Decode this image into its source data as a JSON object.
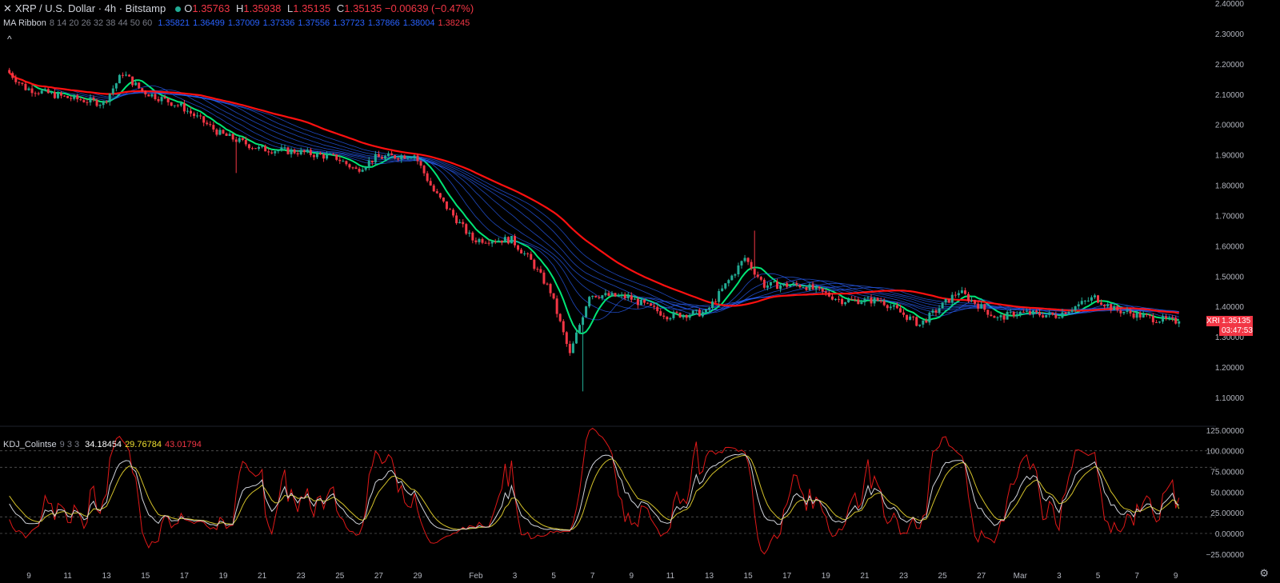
{
  "header": {
    "close_icon": "✕",
    "symbol_title": "XRP / U.S. Dollar · 4h · Bitstamp",
    "open_label": "O",
    "open_value": "1.35763",
    "high_label": "H",
    "high_value": "1.35938",
    "low_label": "L",
    "low_value": "1.35135",
    "close_label": "C",
    "close_value": "1.35135 −0.00639 (−0.47%)"
  },
  "ma_ribbon": {
    "name": "MA Ribbon",
    "params": "8 14 20 26 32 38 44 50 60",
    "values": [
      "1.35821",
      "1.36499",
      "1.37009",
      "1.37336",
      "1.37556",
      "1.37723",
      "1.37866",
      "1.38004",
      "1.38245"
    ],
    "collapse_icon": "^"
  },
  "kdj": {
    "name": "KDJ_Colintse",
    "params": "9 3 3",
    "k_value": "34.18454",
    "d_value": "29.76784",
    "j_value": "43.01794"
  },
  "price_badge": {
    "symbol": "XRPUSD",
    "price": "1.35135",
    "countdown": "03:47:53"
  },
  "settings_icon": "gear-icon",
  "colors": {
    "up": "#22ab94",
    "down": "#f23645",
    "ma_fast": "#00e676",
    "ma_slow": "#ff1010",
    "ribbon": "#2962ff",
    "k": "#d1d4dc",
    "d": "#d4c22a",
    "j": "#e01818"
  },
  "chart_data": [
    {
      "type": "candlestick",
      "title": "XRP / U.S. Dollar · 4h · Bitstamp",
      "ylim": [
        1.05,
        2.4
      ],
      "y_ticks": [
        "1.10000",
        "1.20000",
        "1.30000",
        "1.40000",
        "1.50000",
        "1.60000",
        "1.70000",
        "1.80000",
        "1.90000",
        "2.00000",
        "2.10000",
        "2.20000",
        "2.30000",
        "2.40000"
      ],
      "x_ticks": [
        "9",
        "11",
        "13",
        "15",
        "17",
        "19",
        "21",
        "23",
        "25",
        "27",
        "29",
        "Feb",
        "3",
        "5",
        "7",
        "9",
        "11",
        "13",
        "15",
        "17",
        "19",
        "21",
        "23",
        "25",
        "27",
        "Mar",
        "3",
        "5",
        "7",
        "9"
      ],
      "approx_close_path": [
        {
          "x": "Jan 8",
          "y": 2.18
        },
        {
          "x": "Jan 9",
          "y": 2.12
        },
        {
          "x": "Jan 11",
          "y": 2.09
        },
        {
          "x": "Jan 13",
          "y": 2.07
        },
        {
          "x": "Jan 14",
          "y": 2.17
        },
        {
          "x": "Jan 15",
          "y": 2.11
        },
        {
          "x": "Jan 17",
          "y": 2.06
        },
        {
          "x": "Jan 19",
          "y": 1.97
        },
        {
          "x": "Jan 21",
          "y": 1.92
        },
        {
          "x": "Jan 23",
          "y": 1.91
        },
        {
          "x": "Jan 25",
          "y": 1.89
        },
        {
          "x": "Jan 26",
          "y": 1.85
        },
        {
          "x": "Jan 27",
          "y": 1.89
        },
        {
          "x": "Jan 29",
          "y": 1.9
        },
        {
          "x": "Jan 30",
          "y": 1.78
        },
        {
          "x": "Feb 1",
          "y": 1.62
        },
        {
          "x": "Feb 3",
          "y": 1.62
        },
        {
          "x": "Feb 4",
          "y": 1.55
        },
        {
          "x": "Feb 5",
          "y": 1.45
        },
        {
          "x": "Feb 6",
          "y": 1.24
        },
        {
          "x": "Feb 7",
          "y": 1.44
        },
        {
          "x": "Feb 9",
          "y": 1.43
        },
        {
          "x": "Feb 11",
          "y": 1.37
        },
        {
          "x": "Feb 13",
          "y": 1.38
        },
        {
          "x": "Feb 14",
          "y": 1.47
        },
        {
          "x": "Feb 15",
          "y": 1.56
        },
        {
          "x": "Feb 16",
          "y": 1.47
        },
        {
          "x": "Feb 18",
          "y": 1.47
        },
        {
          "x": "Feb 20",
          "y": 1.42
        },
        {
          "x": "Feb 22",
          "y": 1.42
        },
        {
          "x": "Feb 24",
          "y": 1.34
        },
        {
          "x": "Feb 26",
          "y": 1.45
        },
        {
          "x": "Feb 28",
          "y": 1.36
        },
        {
          "x": "Mar 1",
          "y": 1.38
        },
        {
          "x": "Mar 3",
          "y": 1.37
        },
        {
          "x": "Mar 5",
          "y": 1.43
        },
        {
          "x": "Mar 6",
          "y": 1.39
        },
        {
          "x": "Mar 8",
          "y": 1.36
        },
        {
          "x": "Mar 9",
          "y": 1.35135
        }
      ],
      "ma_ribbon_slowest_path": [
        {
          "x": "Jan 8",
          "y": 2.1
        },
        {
          "x": "Jan 15",
          "y": 2.09
        },
        {
          "x": "Jan 19",
          "y": 2.05
        },
        {
          "x": "Jan 23",
          "y": 1.99
        },
        {
          "x": "Jan 28",
          "y": 1.93
        },
        {
          "x": "Feb 1",
          "y": 1.82
        },
        {
          "x": "Feb 5",
          "y": 1.63
        },
        {
          "x": "Feb 9",
          "y": 1.54
        },
        {
          "x": "Feb 13",
          "y": 1.46
        },
        {
          "x": "Feb 16",
          "y": 1.47
        },
        {
          "x": "Feb 20",
          "y": 1.44
        },
        {
          "x": "Feb 25",
          "y": 1.41
        },
        {
          "x": "Mar 2",
          "y": 1.39
        },
        {
          "x": "Mar 9",
          "y": 1.38245
        }
      ]
    },
    {
      "type": "line",
      "title": "KDJ_Colintse 9 3 3",
      "ylim": [
        -25,
        125
      ],
      "y_ticks": [
        "−25.00000",
        "0.00000",
        "25.00000",
        "50.00000",
        "75.00000",
        "100.00000",
        "125.00000"
      ],
      "series": [
        {
          "name": "K",
          "last": 34.18454
        },
        {
          "name": "D",
          "last": 29.76784
        },
        {
          "name": "J",
          "last": 43.01794
        }
      ],
      "reference_lines": [
        0,
        20,
        80,
        100
      ]
    }
  ]
}
